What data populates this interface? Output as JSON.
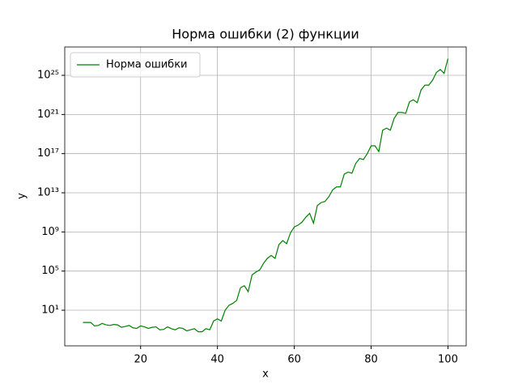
{
  "chart_data": {
    "type": "line",
    "title": "Норма ошибки (2) функции",
    "x_label": "x",
    "y_label": "y",
    "x": [
      5,
      6,
      7,
      8,
      9,
      10,
      11,
      12,
      13,
      14,
      15,
      16,
      17,
      18,
      19,
      20,
      21,
      22,
      23,
      24,
      25,
      26,
      27,
      28,
      29,
      30,
      31,
      32,
      33,
      34,
      35,
      36,
      37,
      38,
      39,
      40,
      41,
      42,
      43,
      44,
      45,
      46,
      47,
      48,
      49,
      50,
      51,
      52,
      53,
      54,
      55,
      56,
      57,
      58,
      59,
      60,
      61,
      62,
      63,
      64,
      65,
      66,
      67,
      68,
      69,
      70,
      71,
      72,
      73,
      74,
      75,
      76,
      77,
      78,
      79,
      80,
      81,
      82,
      83,
      84,
      85,
      86,
      87,
      88,
      89,
      90,
      91,
      92,
      93,
      94,
      95,
      96,
      97,
      98,
      99,
      100
    ],
    "series": [
      {
        "name": "Норма ошибки",
        "color": "#008000",
        "values": [
          0.56,
          0.56,
          0.56,
          0.25,
          0.28,
          0.45,
          0.32,
          0.28,
          0.35,
          0.32,
          0.18,
          0.22,
          0.28,
          0.16,
          0.14,
          0.25,
          0.2,
          0.14,
          0.18,
          0.2,
          0.1,
          0.11,
          0.2,
          0.13,
          0.1,
          0.16,
          0.14,
          0.079,
          0.1,
          0.13,
          0.063,
          0.063,
          0.13,
          0.1,
          0.79,
          1.3,
          0.79,
          10,
          32,
          50,
          100,
          2000,
          3200,
          790,
          40000.0,
          79000.0,
          130000.0,
          630000.0,
          2000000.0,
          4000000.0,
          2000000.0,
          50000000.0,
          130000000.0,
          63000000.0,
          790000000.0,
          3200000000.0,
          5000000000.0,
          10000000000.0,
          32000000000.0,
          79000000000.0,
          7900000000.0,
          500000000000.0,
          1000000000000.0,
          1300000000000.0,
          4000000000000.0,
          20000000000000.0,
          40000000000000.0,
          40000000000000.0,
          790000000000000.0,
          1300000000000000.0,
          1000000000000000.0,
          1e+16,
          3.2e+16,
          2.5e+16,
          1e+17,
          6.3e+17,
          6.3e+17,
          1.6e+17,
          2.5e+19,
          4e+19,
          2.5e+19,
          4e+20,
          1.6e+21,
          1.6e+21,
          1.3e+21,
          2e+22,
          3.2e+22,
          1.6e+22,
          3.2e+23,
          1e+24,
          1e+24,
          3.2e+24,
          2e+25,
          4e+25,
          1.6e+25,
          5e+26
        ]
      }
    ],
    "xlim": [
      0.25,
      104.75
    ],
    "xticks": [
      20,
      40,
      60,
      80,
      100
    ],
    "ylim": [
      0.0023,
      7.9e+27
    ],
    "y_scale": "log",
    "yticks": [
      {
        "value": 10,
        "label": "10¹"
      },
      {
        "value": 100000.0,
        "label": "10⁵"
      },
      {
        "value": 1000000000.0,
        "label": "10⁹"
      },
      {
        "value": 10000000000000.0,
        "label": "10¹³"
      },
      {
        "value": 1e+17,
        "label": "10¹⁷"
      },
      {
        "value": 1e+21,
        "label": "10²¹"
      },
      {
        "value": 1e+25,
        "label": "10²⁵"
      }
    ],
    "grid": true,
    "legend_loc": "upper left"
  }
}
